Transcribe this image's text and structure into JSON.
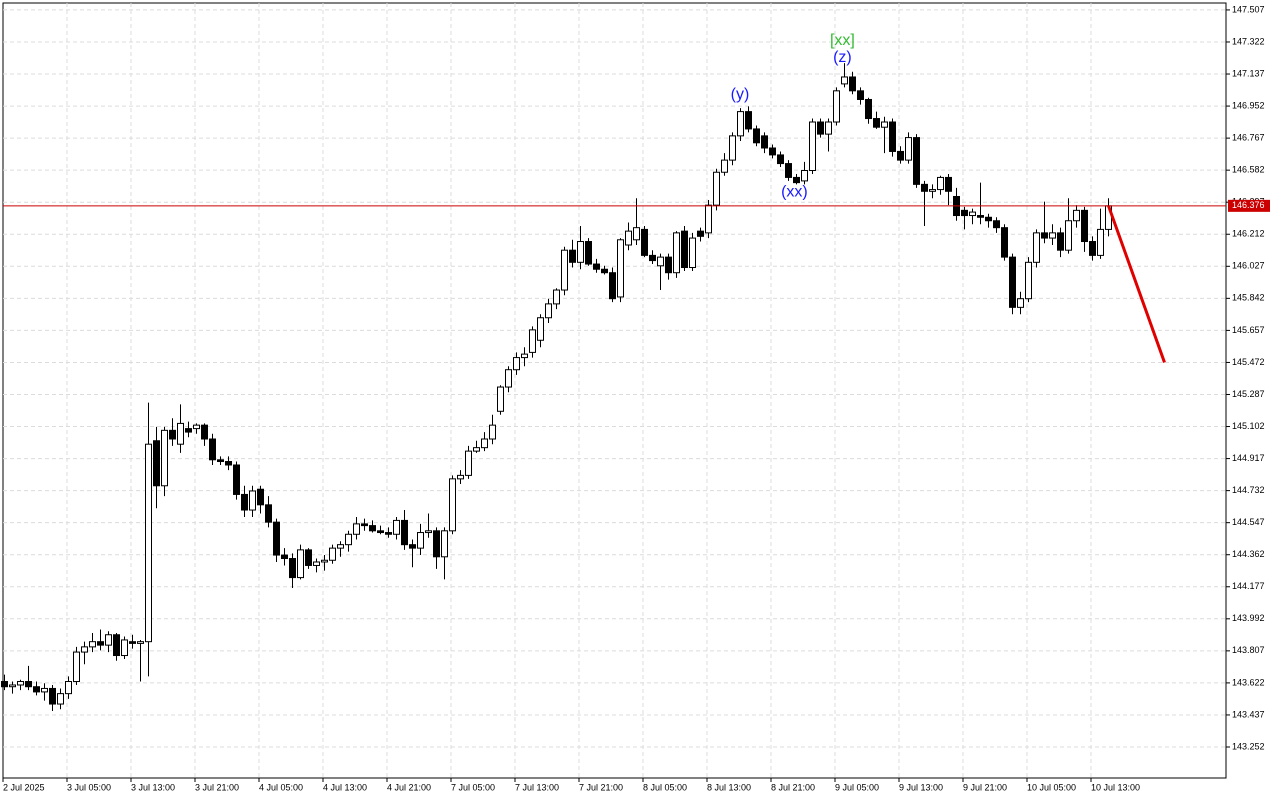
{
  "chart_data": {
    "type": "candlestick",
    "up_color": "#ffffff",
    "down_color": "#000000",
    "edge_color": "#000000",
    "grid": true,
    "ylim": [
      143.073,
      147.547
    ],
    "yticks": [
      147.507,
      147.322,
      147.137,
      146.952,
      146.767,
      146.582,
      146.397,
      146.212,
      146.027,
      145.842,
      145.657,
      145.472,
      145.287,
      145.102,
      144.917,
      144.732,
      144.547,
      144.362,
      144.177,
      143.992,
      143.807,
      143.622,
      143.437,
      143.252
    ],
    "categories": [
      "2 Jul 2025",
      null,
      null,
      null,
      null,
      null,
      null,
      null,
      "3 Jul 05:00",
      null,
      null,
      null,
      null,
      null,
      null,
      null,
      "3 Jul 13:00",
      null,
      null,
      null,
      null,
      null,
      null,
      null,
      "3 Jul 21:00",
      null,
      null,
      null,
      null,
      null,
      null,
      null,
      "4 Jul 05:00",
      null,
      null,
      null,
      null,
      null,
      null,
      null,
      "4 Jul 13:00",
      null,
      null,
      null,
      null,
      null,
      null,
      null,
      "4 Jul 21:00",
      null,
      null,
      null,
      null,
      null,
      null,
      null,
      "7 Jul 05:00",
      null,
      null,
      null,
      null,
      null,
      null,
      null,
      "7 Jul 13:00",
      null,
      null,
      null,
      null,
      null,
      null,
      null,
      "7 Jul 21:00",
      null,
      null,
      null,
      null,
      null,
      null,
      null,
      "8 Jul 05:00",
      null,
      null,
      null,
      null,
      null,
      null,
      null,
      "8 Jul 13:00",
      null,
      null,
      null,
      null,
      null,
      null,
      null,
      "8 Jul 21:00",
      null,
      null,
      null,
      null,
      null,
      null,
      null,
      "9 Jul 05:00",
      null,
      null,
      null,
      null,
      null,
      null,
      null,
      "9 Jul 13:00",
      null,
      null,
      null,
      null,
      null,
      null,
      null,
      "9 Jul 21:00",
      null,
      null,
      null,
      null,
      null,
      null,
      null,
      "10 Jul 05:00",
      null,
      null,
      null,
      null,
      null,
      null,
      null,
      "10 Jul 13:00",
      null,
      null
    ],
    "ohlc": [
      [
        143.63,
        143.67,
        143.58,
        143.6
      ],
      [
        143.6,
        143.63,
        143.56,
        143.61
      ],
      [
        143.61,
        143.64,
        143.58,
        143.63
      ],
      [
        143.63,
        143.72,
        143.58,
        143.6
      ],
      [
        143.6,
        143.63,
        143.55,
        143.57
      ],
      [
        143.57,
        143.62,
        143.52,
        143.59
      ],
      [
        143.59,
        143.61,
        143.46,
        143.5
      ],
      [
        143.5,
        143.59,
        143.47,
        143.56
      ],
      [
        143.56,
        143.66,
        143.53,
        143.63
      ],
      [
        143.63,
        143.83,
        143.61,
        143.8
      ],
      [
        143.8,
        143.86,
        143.73,
        143.83
      ],
      [
        143.83,
        143.91,
        143.8,
        143.86
      ],
      [
        143.86,
        143.93,
        143.81,
        143.84
      ],
      [
        143.84,
        143.92,
        143.8,
        143.9
      ],
      [
        143.9,
        143.91,
        143.75,
        143.78
      ],
      [
        143.78,
        143.89,
        143.76,
        143.87
      ],
      [
        143.86,
        143.9,
        143.82,
        143.85
      ],
      [
        143.85,
        143.87,
        143.63,
        143.86
      ],
      [
        143.86,
        145.24,
        143.66,
        145.0
      ],
      [
        145.02,
        145.1,
        144.63,
        144.76
      ],
      [
        144.76,
        145.1,
        144.7,
        145.08
      ],
      [
        145.08,
        145.15,
        144.99,
        145.03
      ],
      [
        145.0,
        145.23,
        144.95,
        145.12
      ],
      [
        145.09,
        145.13,
        145.04,
        145.07
      ],
      [
        145.09,
        145.12,
        145.06,
        145.11
      ],
      [
        145.11,
        145.12,
        144.99,
        145.03
      ],
      [
        145.03,
        145.06,
        144.88,
        144.91
      ],
      [
        144.91,
        144.93,
        144.88,
        144.9
      ],
      [
        144.9,
        144.93,
        144.85,
        144.88
      ],
      [
        144.88,
        144.9,
        144.68,
        144.71
      ],
      [
        144.71,
        144.76,
        144.58,
        144.62
      ],
      [
        144.62,
        144.76,
        144.58,
        144.73
      ],
      [
        144.74,
        144.76,
        144.6,
        144.65
      ],
      [
        144.65,
        144.7,
        144.52,
        144.55
      ],
      [
        144.55,
        144.57,
        144.32,
        144.36
      ],
      [
        144.36,
        144.4,
        144.3,
        144.34
      ],
      [
        144.34,
        144.37,
        144.17,
        144.23
      ],
      [
        144.23,
        144.42,
        144.22,
        144.39
      ],
      [
        144.39,
        144.4,
        144.28,
        144.3
      ],
      [
        144.3,
        144.34,
        144.26,
        144.32
      ],
      [
        144.32,
        144.36,
        144.27,
        144.33
      ],
      [
        144.33,
        144.42,
        144.31,
        144.4
      ],
      [
        144.4,
        144.44,
        144.35,
        144.42
      ],
      [
        144.42,
        144.5,
        144.38,
        144.48
      ],
      [
        144.48,
        144.58,
        144.45,
        144.54
      ],
      [
        144.54,
        144.57,
        144.5,
        144.53
      ],
      [
        144.53,
        144.56,
        144.49,
        144.5
      ],
      [
        144.5,
        144.53,
        144.48,
        144.49
      ],
      [
        144.49,
        144.52,
        144.46,
        144.48
      ],
      [
        144.48,
        144.58,
        144.45,
        144.56
      ],
      [
        144.56,
        144.62,
        144.39,
        144.42
      ],
      [
        144.42,
        144.45,
        144.29,
        144.4
      ],
      [
        144.4,
        144.54,
        144.36,
        144.49
      ],
      [
        144.49,
        144.6,
        144.46,
        144.5
      ],
      [
        144.5,
        144.52,
        144.28,
        144.35
      ],
      [
        144.35,
        144.52,
        144.22,
        144.5
      ],
      [
        144.5,
        144.82,
        144.48,
        144.8
      ],
      [
        144.8,
        144.85,
        144.77,
        144.82
      ],
      [
        144.82,
        144.99,
        144.8,
        144.96
      ],
      [
        144.96,
        145.02,
        144.95,
        144.98
      ],
      [
        144.98,
        145.07,
        144.96,
        145.03
      ],
      [
        145.03,
        145.17,
        145.0,
        145.11
      ],
      [
        145.19,
        145.34,
        145.17,
        145.33
      ],
      [
        145.33,
        145.45,
        145.3,
        145.43
      ],
      [
        145.43,
        145.53,
        145.4,
        145.5
      ],
      [
        145.5,
        145.56,
        145.45,
        145.52
      ],
      [
        145.53,
        145.68,
        145.5,
        145.66
      ],
      [
        145.6,
        145.75,
        145.56,
        145.73
      ],
      [
        145.73,
        145.84,
        145.7,
        145.81
      ],
      [
        145.81,
        145.9,
        145.78,
        145.89
      ],
      [
        145.89,
        146.14,
        145.86,
        146.12
      ],
      [
        146.12,
        146.18,
        146.02,
        146.05
      ],
      [
        146.05,
        146.26,
        146.01,
        146.17
      ],
      [
        146.17,
        146.19,
        146.03,
        146.04
      ],
      [
        146.04,
        146.07,
        145.99,
        146.01
      ],
      [
        146.01,
        146.03,
        145.98,
        145.99
      ],
      [
        145.99,
        146.02,
        145.82,
        145.84
      ],
      [
        145.85,
        146.19,
        145.82,
        146.18
      ],
      [
        146.15,
        146.28,
        146.12,
        146.23
      ],
      [
        146.18,
        146.42,
        146.15,
        146.25
      ],
      [
        146.24,
        146.26,
        146.08,
        146.09
      ],
      [
        146.09,
        146.12,
        146.04,
        146.06
      ],
      [
        146.03,
        146.1,
        145.89,
        146.08
      ],
      [
        146.08,
        146.1,
        145.95,
        145.99
      ],
      [
        145.99,
        146.23,
        145.96,
        146.22
      ],
      [
        146.23,
        146.26,
        146.0,
        146.02
      ],
      [
        146.02,
        146.22,
        146.0,
        146.19
      ],
      [
        146.23,
        146.25,
        146.17,
        146.2
      ],
      [
        146.22,
        146.41,
        146.19,
        146.38
      ],
      [
        146.38,
        146.59,
        146.35,
        146.57
      ],
      [
        146.57,
        146.68,
        146.55,
        146.64
      ],
      [
        146.64,
        146.8,
        146.61,
        146.78
      ],
      [
        146.78,
        146.94,
        146.75,
        146.92
      ],
      [
        146.92,
        146.95,
        146.8,
        146.82
      ],
      [
        146.82,
        146.84,
        146.72,
        146.74
      ],
      [
        146.78,
        146.8,
        146.68,
        146.71
      ],
      [
        146.71,
        146.73,
        146.65,
        146.67
      ],
      [
        146.67,
        146.69,
        146.6,
        146.62
      ],
      [
        146.62,
        146.64,
        146.52,
        146.54
      ],
      [
        146.54,
        146.56,
        146.5,
        146.51
      ],
      [
        146.52,
        146.63,
        146.5,
        146.58
      ],
      [
        146.58,
        146.88,
        146.56,
        146.86
      ],
      [
        146.86,
        146.88,
        146.77,
        146.79
      ],
      [
        146.79,
        146.88,
        146.69,
        146.86
      ],
      [
        146.86,
        147.06,
        146.84,
        147.04
      ],
      [
        147.08,
        147.2,
        147.06,
        147.12
      ],
      [
        147.12,
        147.15,
        147.02,
        147.04
      ],
      [
        147.04,
        147.06,
        146.96,
        146.99
      ],
      [
        146.99,
        147.0,
        146.85,
        146.88
      ],
      [
        146.88,
        146.92,
        146.82,
        146.83
      ],
      [
        146.83,
        146.89,
        146.68,
        146.86
      ],
      [
        146.86,
        146.88,
        146.66,
        146.69
      ],
      [
        146.69,
        146.72,
        146.62,
        146.64
      ],
      [
        146.64,
        146.8,
        146.62,
        146.77
      ],
      [
        146.77,
        146.79,
        146.48,
        146.5
      ],
      [
        146.5,
        146.52,
        146.26,
        146.46
      ],
      [
        146.46,
        146.5,
        146.42,
        146.47
      ],
      [
        146.47,
        146.55,
        146.44,
        146.54
      ],
      [
        146.54,
        146.56,
        146.38,
        146.46
      ],
      [
        146.43,
        146.48,
        146.29,
        146.32
      ],
      [
        146.35,
        146.37,
        146.24,
        146.32
      ],
      [
        146.32,
        146.36,
        146.27,
        146.34
      ],
      [
        146.32,
        146.51,
        146.27,
        146.31
      ],
      [
        146.31,
        146.33,
        146.25,
        146.29
      ],
      [
        146.29,
        146.31,
        146.22,
        146.25
      ],
      [
        146.25,
        146.27,
        146.06,
        146.08
      ],
      [
        146.08,
        146.1,
        145.75,
        145.79
      ],
      [
        145.79,
        145.88,
        145.75,
        145.84
      ],
      [
        145.84,
        146.08,
        145.82,
        146.05
      ],
      [
        146.05,
        146.24,
        146.02,
        146.22
      ],
      [
        146.22,
        146.4,
        146.16,
        146.19
      ],
      [
        146.19,
        146.27,
        146.15,
        146.22
      ],
      [
        146.22,
        146.25,
        146.08,
        146.12
      ],
      [
        146.12,
        146.42,
        146.1,
        146.29
      ],
      [
        146.29,
        146.38,
        146.25,
        146.35
      ],
      [
        146.35,
        146.37,
        146.11,
        146.17
      ],
      [
        146.17,
        146.2,
        146.06,
        146.09
      ],
      [
        146.09,
        146.36,
        146.07,
        146.24
      ],
      [
        146.24,
        146.42,
        146.2,
        146.376
      ]
    ],
    "current_price": 146.376,
    "current_price_color": "#cc0000",
    "forecast": {
      "color": "#e00000",
      "x": [
        138,
        145
      ],
      "values": [
        146.376,
        145.472
      ]
    },
    "annotations": [
      {
        "text": "(y)",
        "x": 92,
        "value": 147.016,
        "color": "#1a1aff"
      },
      {
        "text": "(xx)",
        "x": 98.8,
        "value": 146.455,
        "color": "#1a1aff"
      },
      {
        "text": "(z)",
        "x": 104.8,
        "value": 147.23,
        "color": "#1a1aff"
      },
      {
        "text": "[xx]",
        "x": 104.8,
        "value": 147.33,
        "color": "#33bb33"
      }
    ]
  }
}
